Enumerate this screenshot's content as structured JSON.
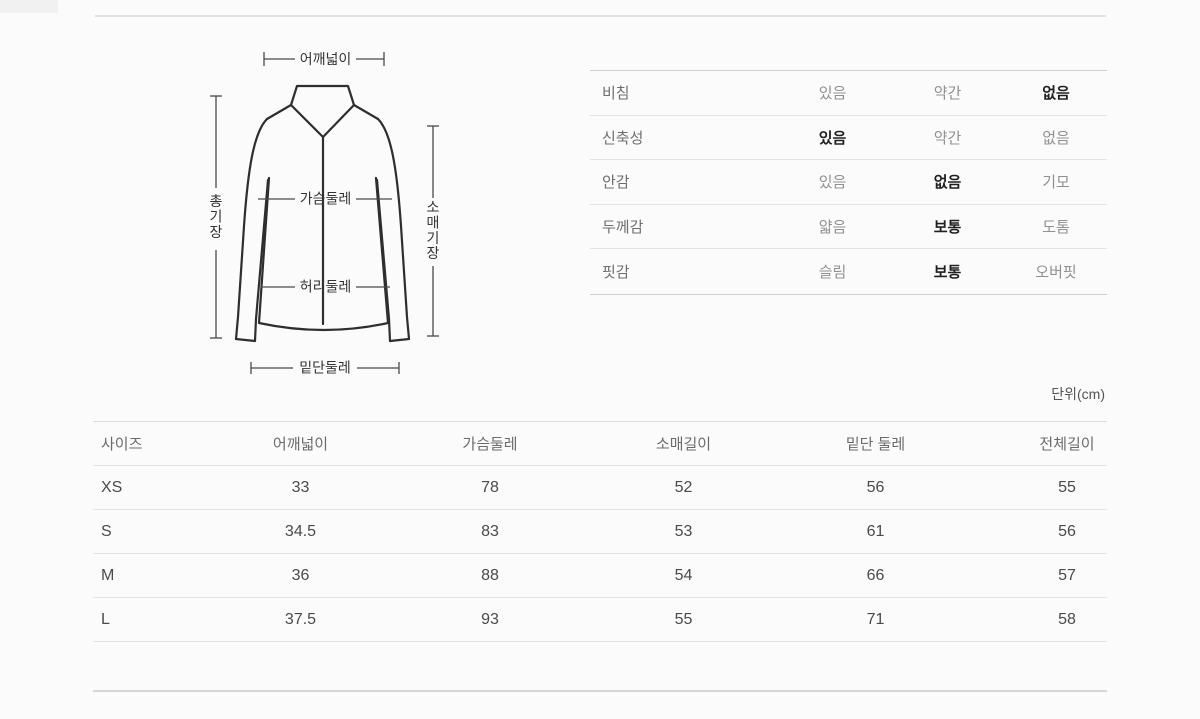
{
  "diagram": {
    "labels": {
      "shoulder": "어깨넓이",
      "total_length": "총기장",
      "sleeve_length": "소매기장",
      "chest": "가슴둘레",
      "waist": "허리둘레",
      "hem": "밑단둘레"
    }
  },
  "properties_table": {
    "rows": [
      {
        "label": "비침",
        "options": [
          {
            "text": "있음",
            "selected": false
          },
          {
            "text": "약간",
            "selected": false
          },
          {
            "text": "없음",
            "selected": true
          }
        ]
      },
      {
        "label": "신축성",
        "options": [
          {
            "text": "있음",
            "selected": true
          },
          {
            "text": "약간",
            "selected": false
          },
          {
            "text": "없음",
            "selected": false
          }
        ]
      },
      {
        "label": "안감",
        "options": [
          {
            "text": "있음",
            "selected": false
          },
          {
            "text": "없음",
            "selected": true
          },
          {
            "text": "기모",
            "selected": false
          }
        ]
      },
      {
        "label": "두께감",
        "options": [
          {
            "text": "얇음",
            "selected": false
          },
          {
            "text": "보통",
            "selected": true
          },
          {
            "text": "도톰",
            "selected": false
          }
        ]
      },
      {
        "label": "핏감",
        "options": [
          {
            "text": "슬림",
            "selected": false
          },
          {
            "text": "보통",
            "selected": true
          },
          {
            "text": "오버핏",
            "selected": false
          }
        ]
      }
    ]
  },
  "unit_label": "단위(cm)",
  "size_table": {
    "headers": [
      "사이즈",
      "어깨넓이",
      "가슴둘레",
      "소매길이",
      "밑단 둘레",
      "전체길이"
    ],
    "rows": [
      {
        "size": "XS",
        "values": [
          "33",
          "78",
          "52",
          "56",
          "55"
        ]
      },
      {
        "size": "S",
        "values": [
          "34.5",
          "83",
          "53",
          "61",
          "56"
        ]
      },
      {
        "size": "M",
        "values": [
          "36",
          "88",
          "54",
          "66",
          "57"
        ]
      },
      {
        "size": "L",
        "values": [
          "37.5",
          "93",
          "55",
          "71",
          "58"
        ]
      }
    ]
  },
  "colors": {
    "background": "#fbfbfb",
    "text_primary": "#1f1f1f",
    "text_secondary": "#909090",
    "border": "#e3e3e3",
    "diagram_stroke": "#2e2e2e"
  }
}
